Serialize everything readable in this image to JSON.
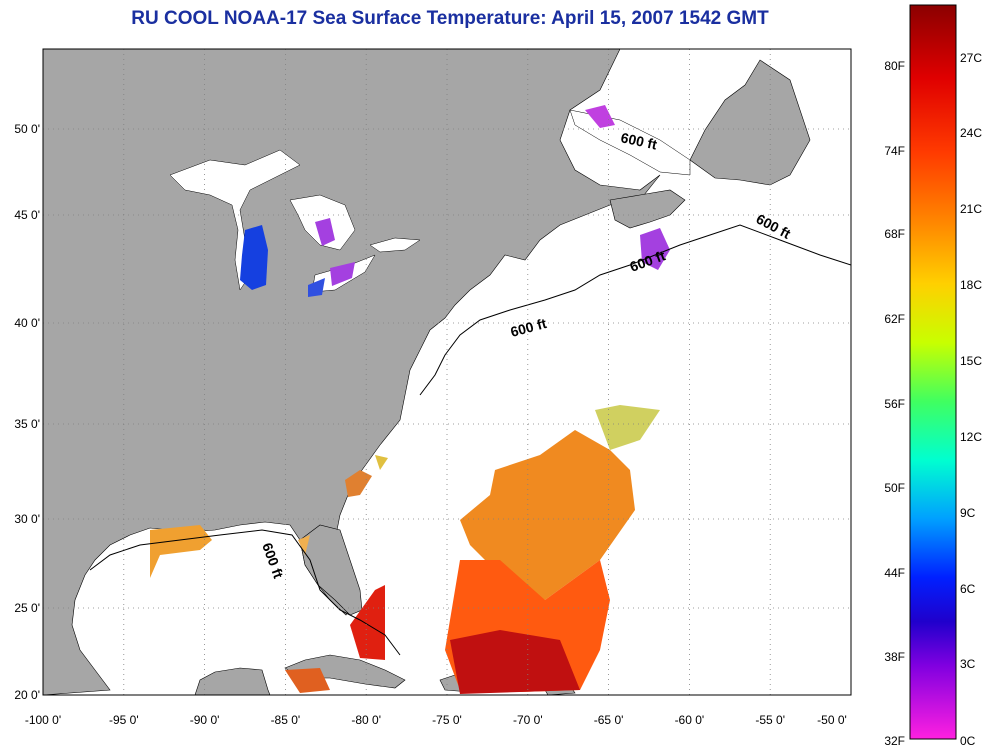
{
  "title": "RU COOL  NOAA-17  Sea Surface Temperature:  April 15, 2007 1542 GMT",
  "axes": {
    "x_ticks": [
      "-100 0'",
      "-95 0'",
      "-90 0'",
      "-85 0'",
      "-80 0'",
      "-75 0'",
      "-70 0'",
      "-65 0'",
      "-60 0'",
      "-55 0'",
      "-50 0'"
    ],
    "y_ticks": [
      "50 0'",
      "45 0'",
      "40 0'",
      "35 0'",
      "30 0'",
      "25 0'",
      "20 0'"
    ]
  },
  "contour": {
    "label": "600 ft"
  },
  "colorbar": {
    "fahrenheit": [
      "80F",
      "74F",
      "68F",
      "62F",
      "56F",
      "50F",
      "44F",
      "38F",
      "32F"
    ],
    "celsius": [
      "27C",
      "24C",
      "21C",
      "18C",
      "15C",
      "12C",
      "9C",
      "6C",
      "3C",
      "0C"
    ]
  },
  "colors": {
    "land": "#a6a6a6",
    "ocean": "#ffffff",
    "title": "#1a2fa0"
  }
}
